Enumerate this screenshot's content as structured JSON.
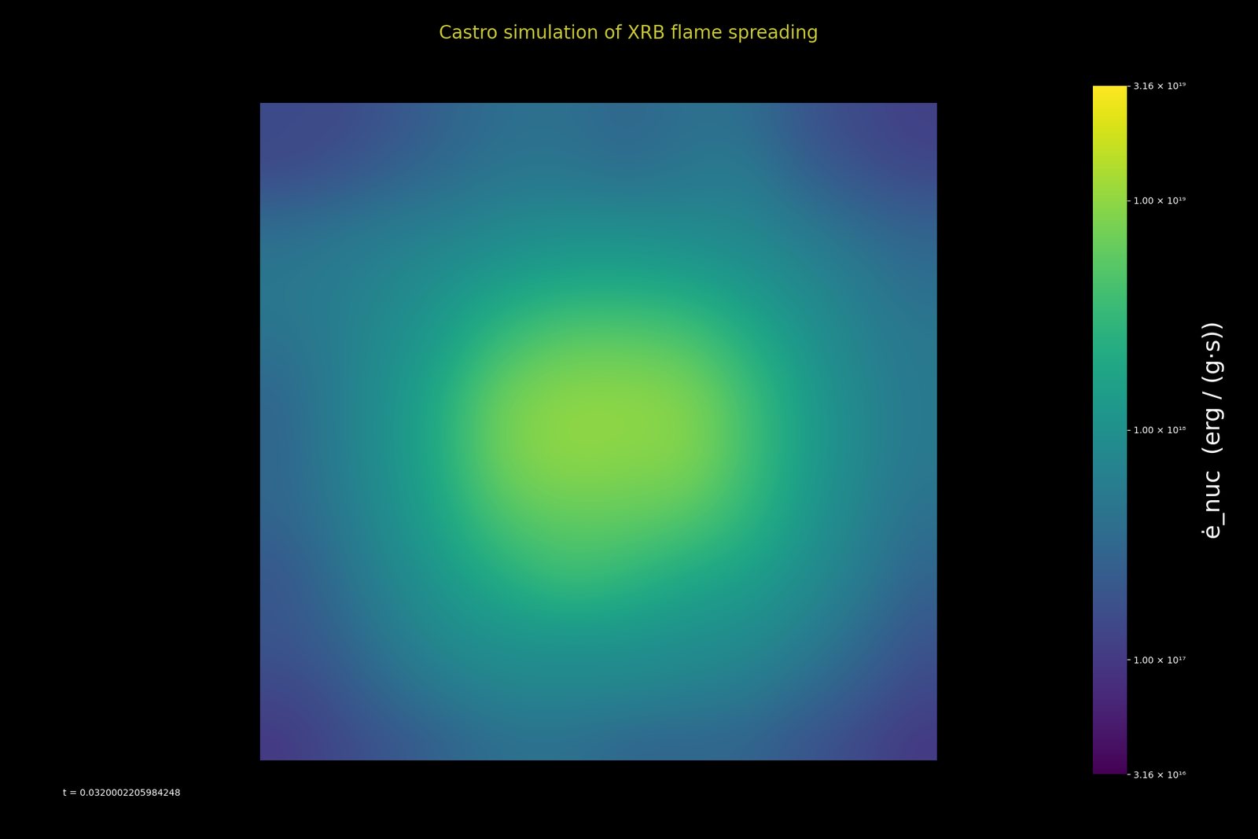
{
  "chart_data": {
    "type": "heatmap",
    "title": "Castro simulation of XRB flame spreading",
    "annotation": "t = 0.0320002205984248",
    "colorbar_label": "ė_nuc  (erg / (g·s))",
    "log": true,
    "tick_labels": false,
    "colorbar_lim": [
      3.16e+16,
      3.16e+19
    ],
    "colorbar_ticks": [
      {
        "value": 3.16e+16,
        "label": "3.16 × 10¹⁶"
      },
      {
        "value": 1e+17,
        "label": "1.00 × 10¹⁷"
      },
      {
        "value": 1e+18,
        "label": "1.00 × 10¹⁸"
      },
      {
        "value": 1e+19,
        "label": "1.00 × 10¹⁹"
      },
      {
        "value": 3.16e+19,
        "label": "3.16 × 10¹⁹"
      }
    ],
    "cells": [
      [
        1.5e+17,
        1.5e+17,
        2e+17,
        3e+17,
        4e+17,
        4e+17,
        3e+17,
        4e+17,
        4e+17,
        2e+17,
        1.5e+17,
        1.2e+17
      ],
      [
        1.5e+17,
        2e+17,
        3e+17,
        4e+17,
        5e+17,
        5e+17,
        4e+17,
        5e+17,
        6e+17,
        3e+17,
        2e+17,
        1.5e+17
      ],
      [
        4e+17,
        5e+17,
        6e+17,
        7e+17,
        9e+17,
        1e+18,
        1e+18,
        9e+17,
        8e+17,
        6e+17,
        4e+17,
        3e+17
      ],
      [
        5e+17,
        6e+17,
        8e+17,
        1.2e+18,
        1.6e+18,
        2e+18,
        2e+18,
        1.8e+18,
        1.3e+18,
        9e+17,
        6e+17,
        4e+17
      ],
      [
        4e+17,
        6e+17,
        1e+18,
        1.6e+18,
        4e+18,
        6e+18,
        6e+18,
        5e+18,
        2.5e+18,
        1.2e+18,
        7e+17,
        5e+17
      ],
      [
        3e+17,
        6e+17,
        1.1e+18,
        2.5e+18,
        8e+18,
        1e+19,
        1e+19,
        9e+18,
        4e+18,
        1.5e+18,
        8e+17,
        5e+17
      ],
      [
        3e+17,
        6e+17,
        1.1e+18,
        2.5e+18,
        8e+18,
        1e+19,
        9e+18,
        9e+18,
        4e+18,
        1.5e+18,
        8e+17,
        5e+17
      ],
      [
        3e+17,
        5e+17,
        1e+18,
        2e+18,
        5e+18,
        6e+18,
        6e+18,
        5e+18,
        3e+18,
        1.3e+18,
        7e+17,
        4e+17
      ],
      [
        2e+17,
        4e+17,
        8e+17,
        1.4e+18,
        2.5e+18,
        4e+18,
        3e+18,
        2e+18,
        1.6e+18,
        1e+18,
        6e+17,
        3e+17
      ],
      [
        2e+17,
        3e+17,
        6e+17,
        1e+18,
        1.2e+18,
        1.2e+18,
        1.2e+18,
        1.1e+18,
        1e+18,
        7e+17,
        4e+17,
        2e+17
      ],
      [
        1.5e+17,
        2e+17,
        4e+17,
        6e+17,
        8e+17,
        8e+17,
        8e+17,
        7e+17,
        6e+17,
        4e+17,
        2.5e+17,
        1.5e+17
      ],
      [
        1e+17,
        1.5e+17,
        2e+17,
        3e+17,
        4e+17,
        4e+17,
        3e+17,
        3e+17,
        3e+17,
        2e+17,
        1.5e+17,
        1e+17
      ]
    ]
  }
}
